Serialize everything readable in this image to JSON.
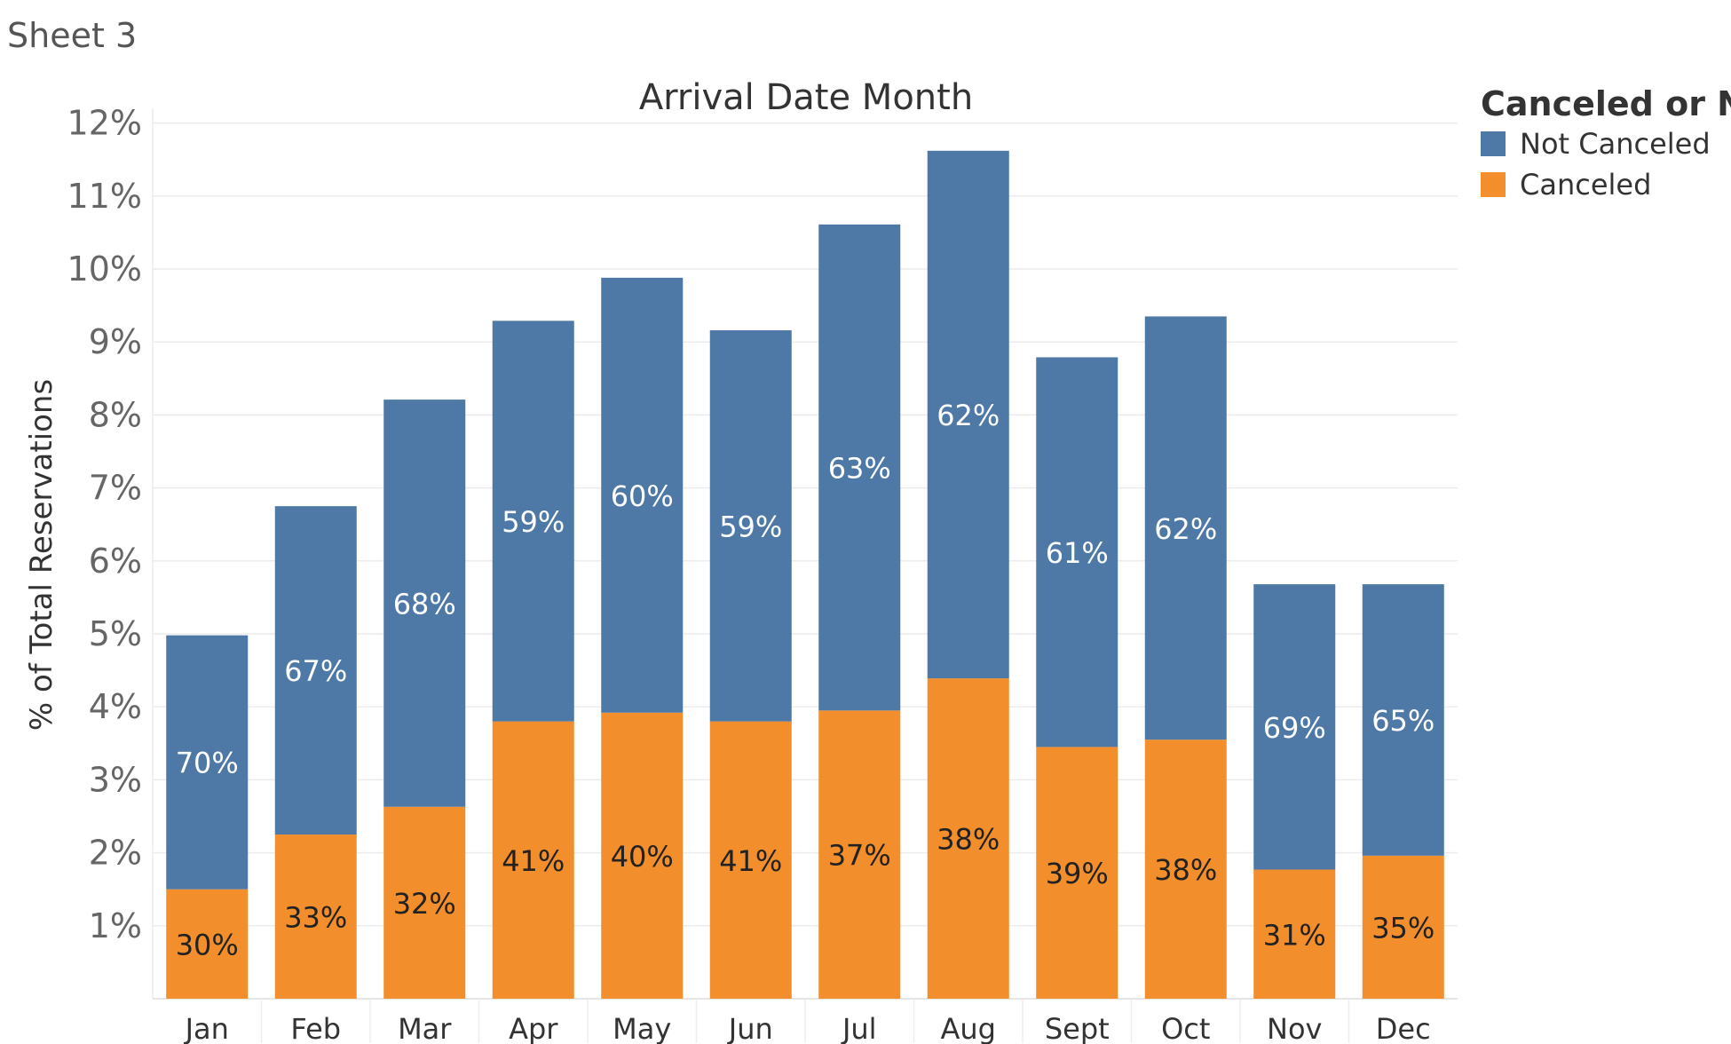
{
  "sheet": {
    "title": "Sheet 3"
  },
  "chart_data": {
    "type": "bar",
    "stacked": true,
    "title": "Arrival Date Month",
    "xlabel": "",
    "ylabel": "% of Total Reservations",
    "ylim": [
      0,
      12
    ],
    "yticks": [
      1,
      2,
      3,
      4,
      5,
      6,
      7,
      8,
      9,
      10,
      11,
      12
    ],
    "ytick_labels": [
      "1%",
      "2%",
      "3%",
      "4%",
      "5%",
      "6%",
      "7%",
      "8%",
      "9%",
      "10%",
      "11%",
      "12%"
    ],
    "grid": true,
    "categories": [
      "Jan",
      "Feb",
      "Mar",
      "Apr",
      "May",
      "Jun",
      "Jul",
      "Aug",
      "Sept",
      "Oct",
      "Nov",
      "Dec"
    ],
    "series": [
      {
        "name": "Canceled",
        "color": "#F28E2B",
        "values": [
          1.5,
          2.25,
          2.63,
          3.8,
          3.92,
          3.8,
          3.95,
          4.39,
          3.45,
          3.55,
          1.77,
          1.96
        ],
        "labels": [
          "30%",
          "33%",
          "32%",
          "41%",
          "40%",
          "41%",
          "37%",
          "38%",
          "39%",
          "38%",
          "31%",
          "35%"
        ]
      },
      {
        "name": "Not Canceled",
        "color": "#4E79A7",
        "values": [
          3.48,
          4.5,
          5.58,
          5.49,
          5.96,
          5.36,
          6.66,
          7.23,
          5.34,
          5.8,
          3.91,
          3.72
        ],
        "labels": [
          "70%",
          "67%",
          "68%",
          "59%",
          "60%",
          "59%",
          "63%",
          "62%",
          "61%",
          "62%",
          "69%",
          "65%"
        ]
      }
    ],
    "legend": {
      "title": "Canceled or Not",
      "position": "top-right",
      "items": [
        {
          "label": "Not Canceled",
          "color": "#4E79A7"
        },
        {
          "label": "Canceled",
          "color": "#F28E2B"
        }
      ]
    }
  }
}
